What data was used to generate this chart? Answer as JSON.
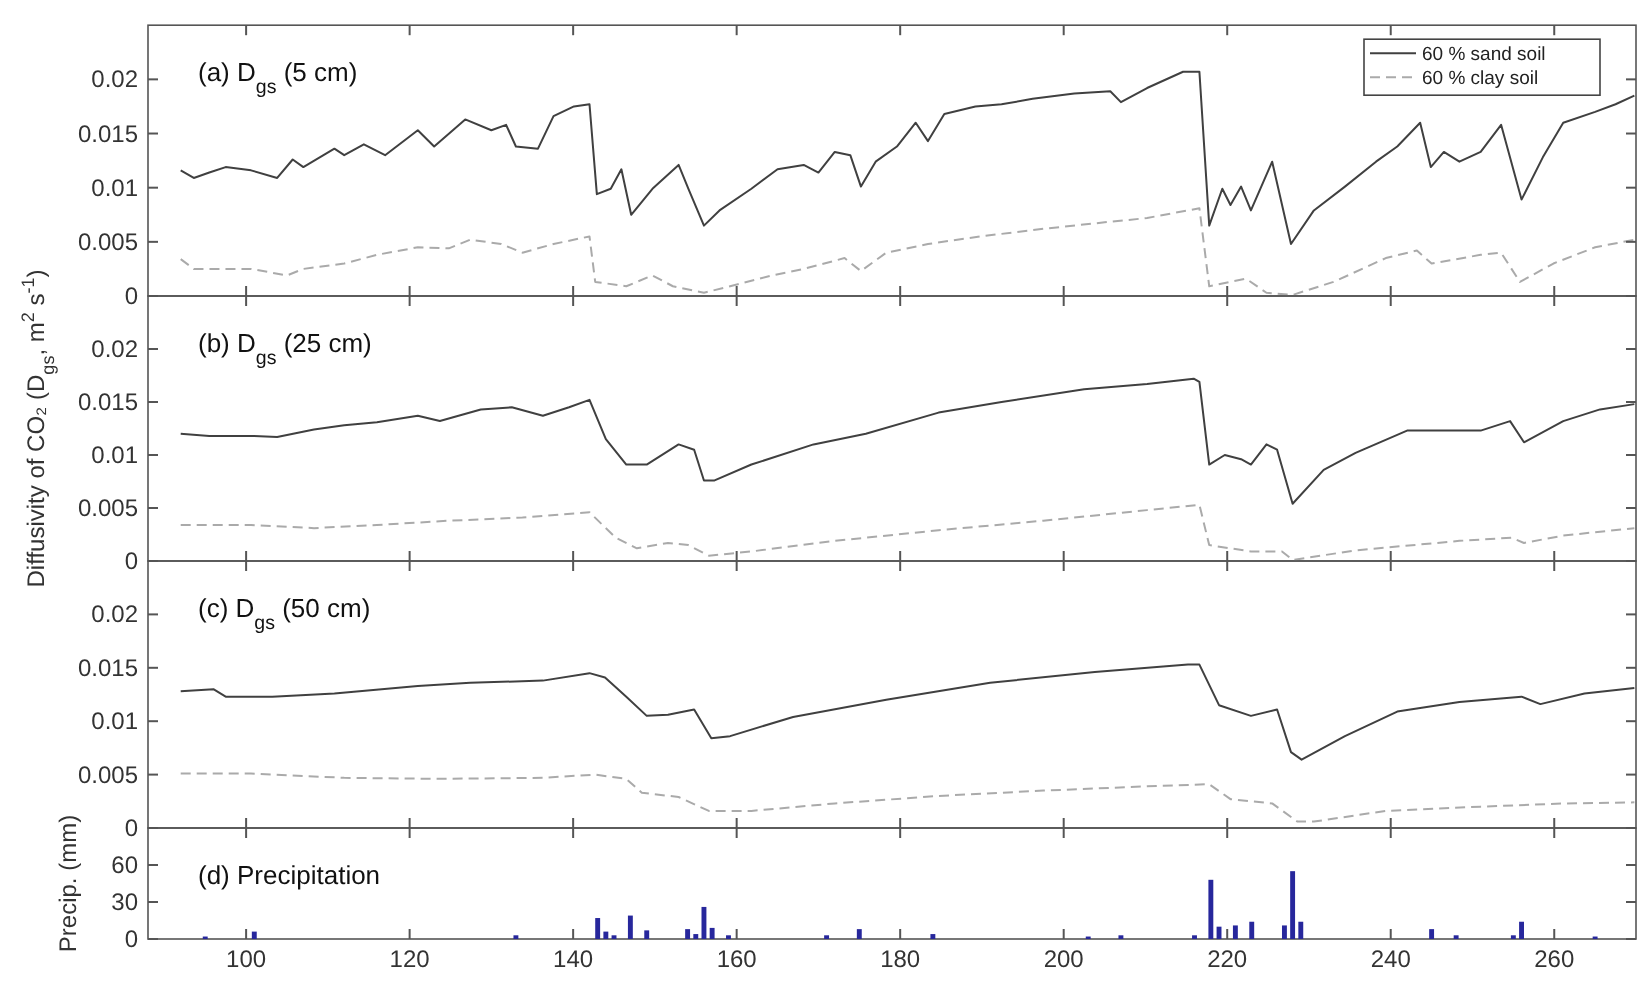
{
  "chart_data": [
    {
      "type": "line",
      "title": "(a) D$_{gs}$ (5 cm)",
      "xlim": [
        88,
        270
      ],
      "xticks": [
        100,
        120,
        140,
        160,
        180,
        200,
        220,
        240,
        260
      ],
      "ylim": [
        0,
        0.025
      ],
      "yticks": [
        0,
        0.005,
        0.01,
        0.015,
        0.02
      ],
      "tick_labels": "y",
      "legend": "top right",
      "series": [
        {
          "name": "60 % sand soil",
          "color": "#404040",
          "line_style": "solid",
          "x": [
            92,
            93.6,
            95.5,
            97.5,
            100.6,
            103.8,
            105.7,
            107,
            110.8,
            112,
            114.4,
            117,
            121,
            123,
            126.8,
            130,
            131.8,
            133,
            135.7,
            137.6,
            140.1,
            142,
            142.9,
            144.6,
            145.9,
            147.1,
            148.4,
            149.7,
            152.9,
            154.1,
            156,
            157.9,
            161.8,
            165,
            168.2,
            170,
            172,
            173.9,
            175.2,
            177,
            179.6,
            181.9,
            183.4,
            185.4,
            189.2,
            192.4,
            196.2,
            201.3,
            205.7,
            207,
            210.2,
            214.6,
            216.6,
            217.8,
            219.4,
            220.4,
            221.7,
            222.9,
            225.5,
            227.8,
            230.6,
            234.4,
            238.2,
            240.8,
            243.6,
            244.9,
            246.5,
            248.4,
            251,
            253.5,
            256,
            258.6,
            261.1,
            265,
            267.5,
            269.8
          ],
          "values": [
            0.0116,
            0.0109,
            0.0114,
            0.0119,
            0.0116,
            0.0109,
            0.0126,
            0.0119,
            0.0136,
            0.013,
            0.014,
            0.013,
            0.0153,
            0.0138,
            0.0163,
            0.0153,
            0.0158,
            0.0138,
            0.0136,
            0.0166,
            0.0175,
            0.0177,
            0.0094,
            0.0099,
            0.0117,
            0.0075,
            0.0087,
            0.0099,
            0.0121,
            0.0099,
            0.0065,
            0.0079,
            0.0099,
            0.0117,
            0.0121,
            0.0114,
            0.0133,
            0.013,
            0.0101,
            0.0124,
            0.0138,
            0.016,
            0.0143,
            0.0168,
            0.0175,
            0.0177,
            0.0182,
            0.0187,
            0.0189,
            0.0179,
            0.0192,
            0.0207,
            0.0207,
            0.0065,
            0.0099,
            0.0084,
            0.0101,
            0.0079,
            0.0124,
            0.0048,
            0.0079,
            0.0101,
            0.0124,
            0.0138,
            0.016,
            0.0119,
            0.0133,
            0.0124,
            0.0133,
            0.0158,
            0.0089,
            0.0128,
            0.016,
            0.017,
            0.0177,
            0.0185
          ]
        },
        {
          "name": "60 % clay soil",
          "color": "#aaaaaa",
          "line_style": "dashed",
          "x": [
            92,
            93.6,
            97.5,
            100.6,
            105,
            107,
            112,
            116,
            121,
            124.8,
            127.4,
            131.2,
            133.8,
            137.6,
            142,
            142.7,
            146.5,
            149.7,
            152.2,
            156,
            159.2,
            164.3,
            168.2,
            173.2,
            175.2,
            178.3,
            183.4,
            189.8,
            197.5,
            205,
            210.2,
            216.6,
            217.8,
            222.3,
            224.8,
            228,
            233,
            239.4,
            243.2,
            245,
            251,
            253.5,
            255.8,
            259.9,
            265,
            269.8
          ],
          "values": [
            0.0034,
            0.0025,
            0.0025,
            0.0025,
            0.0019,
            0.0025,
            0.003,
            0.0038,
            0.0045,
            0.0044,
            0.0052,
            0.0048,
            0.004,
            0.0048,
            0.0055,
            0.0013,
            0.0009,
            0.0019,
            0.0009,
            0.0003,
            0.0009,
            0.0019,
            0.0025,
            0.0035,
            0.0023,
            0.004,
            0.0048,
            0.0055,
            0.0062,
            0.0068,
            0.0072,
            0.0081,
            0.0009,
            0.0016,
            0.0003,
            0.0001,
            0.0013,
            0.0035,
            0.0042,
            0.003,
            0.0038,
            0.004,
            0.0013,
            0.003,
            0.0045,
            0.0052
          ]
        }
      ]
    },
    {
      "type": "line",
      "title": "(b) D$_{gs}$ (25 cm)",
      "ylabel": "Diffusivity of CO₂ (D$_{gs}$, m$^{2}$ s$^{-1}$)",
      "xlim": [
        88,
        270
      ],
      "xticks": [
        100,
        120,
        140,
        160,
        180,
        200,
        220,
        240,
        260
      ],
      "ylim": [
        0,
        0.025
      ],
      "yticks": [
        0,
        0.005,
        0.01,
        0.015,
        0.02
      ],
      "tick_labels": "y",
      "series": [
        {
          "color": "#404040",
          "line_style": "solid",
          "x": [
            92,
            95.5,
            100.6,
            103.8,
            108.3,
            112,
            116,
            121,
            123.7,
            128.7,
            132.5,
            136.3,
            139.5,
            142,
            144,
            146.5,
            149,
            152.9,
            154.8,
            156,
            157.3,
            161.8,
            169.4,
            175.8,
            184.7,
            192.4,
            202.5,
            210.2,
            215.9,
            216.6,
            217.8,
            219.7,
            221.7,
            222.9,
            224.8,
            226.1,
            228,
            231.8,
            235.7,
            242,
            245.9,
            251,
            254.6,
            256.3,
            261.1,
            265.6,
            269.8
          ],
          "values": [
            0.012,
            0.0118,
            0.0118,
            0.0117,
            0.0124,
            0.0128,
            0.0131,
            0.0137,
            0.0132,
            0.0143,
            0.0145,
            0.0137,
            0.0145,
            0.0152,
            0.0115,
            0.0091,
            0.0091,
            0.011,
            0.0105,
            0.0076,
            0.0076,
            0.0091,
            0.011,
            0.012,
            0.014,
            0.015,
            0.0162,
            0.0167,
            0.0172,
            0.0169,
            0.0091,
            0.01,
            0.0096,
            0.0091,
            0.011,
            0.0105,
            0.0054,
            0.0086,
            0.0102,
            0.0123,
            0.0123,
            0.0123,
            0.0132,
            0.0112,
            0.0132,
            0.0143,
            0.0148
          ]
        },
        {
          "color": "#aaaaaa",
          "line_style": "dashed",
          "x": [
            92,
            100.6,
            108.3,
            116,
            124.8,
            133.8,
            142,
            145.2,
            147.8,
            151.6,
            154.1,
            156.6,
            161.8,
            172,
            184.7,
            197.5,
            210.2,
            216.6,
            217.8,
            222.9,
            226.7,
            228,
            235.7,
            248.4,
            254.8,
            256.3,
            261.1,
            269.8
          ],
          "values": [
            0.0034,
            0.0034,
            0.0031,
            0.0034,
            0.0038,
            0.0041,
            0.0046,
            0.0022,
            0.0012,
            0.0017,
            0.0015,
            0.0005,
            0.0009,
            0.0019,
            0.0029,
            0.0038,
            0.0048,
            0.0053,
            0.0015,
            0.0009,
            0.0009,
            0.0001,
            0.001,
            0.0019,
            0.0022,
            0.0017,
            0.0024,
            0.0031
          ]
        }
      ]
    },
    {
      "type": "line",
      "title": "(c) D$_{gs}$ (50 cm)",
      "xlim": [
        88,
        270
      ],
      "xticks": [
        100,
        120,
        140,
        160,
        180,
        200,
        220,
        240,
        260
      ],
      "ylim": [
        0,
        0.025
      ],
      "yticks": [
        0,
        0.005,
        0.01,
        0.015,
        0.02
      ],
      "tick_labels": "y",
      "series": [
        {
          "color": "#404040",
          "line_style": "solid",
          "x": [
            92,
            96,
            97.5,
            103.2,
            110.8,
            121,
            127.4,
            136.3,
            142,
            143.9,
            146.5,
            149,
            151.6,
            154.8,
            156.9,
            159.2,
            166.9,
            178.3,
            191,
            203.8,
            215.2,
            216.6,
            219,
            222.9,
            226.1,
            227.8,
            229.1,
            234.4,
            240.8,
            248.4,
            256,
            258.3,
            263.7,
            269.8
          ],
          "values": [
            0.0128,
            0.013,
            0.0123,
            0.0123,
            0.0126,
            0.0133,
            0.0136,
            0.0138,
            0.0145,
            0.0141,
            0.0123,
            0.0105,
            0.0106,
            0.0111,
            0.0084,
            0.0086,
            0.0104,
            0.012,
            0.0136,
            0.0146,
            0.0153,
            0.0153,
            0.0115,
            0.0105,
            0.0111,
            0.0071,
            0.0064,
            0.0086,
            0.0109,
            0.0118,
            0.0123,
            0.0116,
            0.0126,
            0.0131
          ]
        },
        {
          "color": "#aaaaaa",
          "line_style": "dashed",
          "x": [
            92,
            100.6,
            112,
            123.5,
            136.3,
            142.7,
            146.5,
            148.4,
            152.9,
            156.6,
            161.8,
            172,
            184.7,
            197.5,
            210.2,
            217.8,
            220.4,
            225.5,
            228.6,
            230.6,
            239.4,
            251,
            261.1,
            269.8
          ],
          "values": [
            0.0051,
            0.0051,
            0.0047,
            0.0046,
            0.0047,
            0.005,
            0.0046,
            0.0033,
            0.0029,
            0.0016,
            0.0016,
            0.0023,
            0.003,
            0.0035,
            0.0039,
            0.0041,
            0.0027,
            0.0023,
            0.0006,
            0.0006,
            0.0016,
            0.002,
            0.0023,
            0.0024
          ]
        }
      ]
    },
    {
      "type": "bar",
      "title": "(d) Precipitation",
      "ylabel": "Precip. (mm)",
      "xlim": [
        88,
        270
      ],
      "xticks": [
        100,
        120,
        140,
        160,
        180,
        200,
        220,
        240,
        260
      ],
      "ylim": [
        0,
        90
      ],
      "yticks": [
        0,
        30,
        60
      ],
      "color": "#27279c",
      "x": [
        95,
        101,
        133,
        143,
        144,
        145,
        147,
        149,
        154,
        155,
        156,
        157,
        159,
        171,
        175,
        184,
        203,
        207,
        216,
        218,
        219,
        221,
        223,
        227,
        228,
        229,
        245,
        248,
        255,
        256,
        265
      ],
      "values": [
        2,
        6,
        3,
        17,
        6,
        3,
        19,
        7,
        8,
        4,
        26,
        9,
        3,
        3,
        8,
        4,
        2,
        3,
        3,
        48,
        10,
        11,
        14,
        11,
        55,
        14,
        8,
        3,
        3,
        14,
        2
      ]
    }
  ]
}
